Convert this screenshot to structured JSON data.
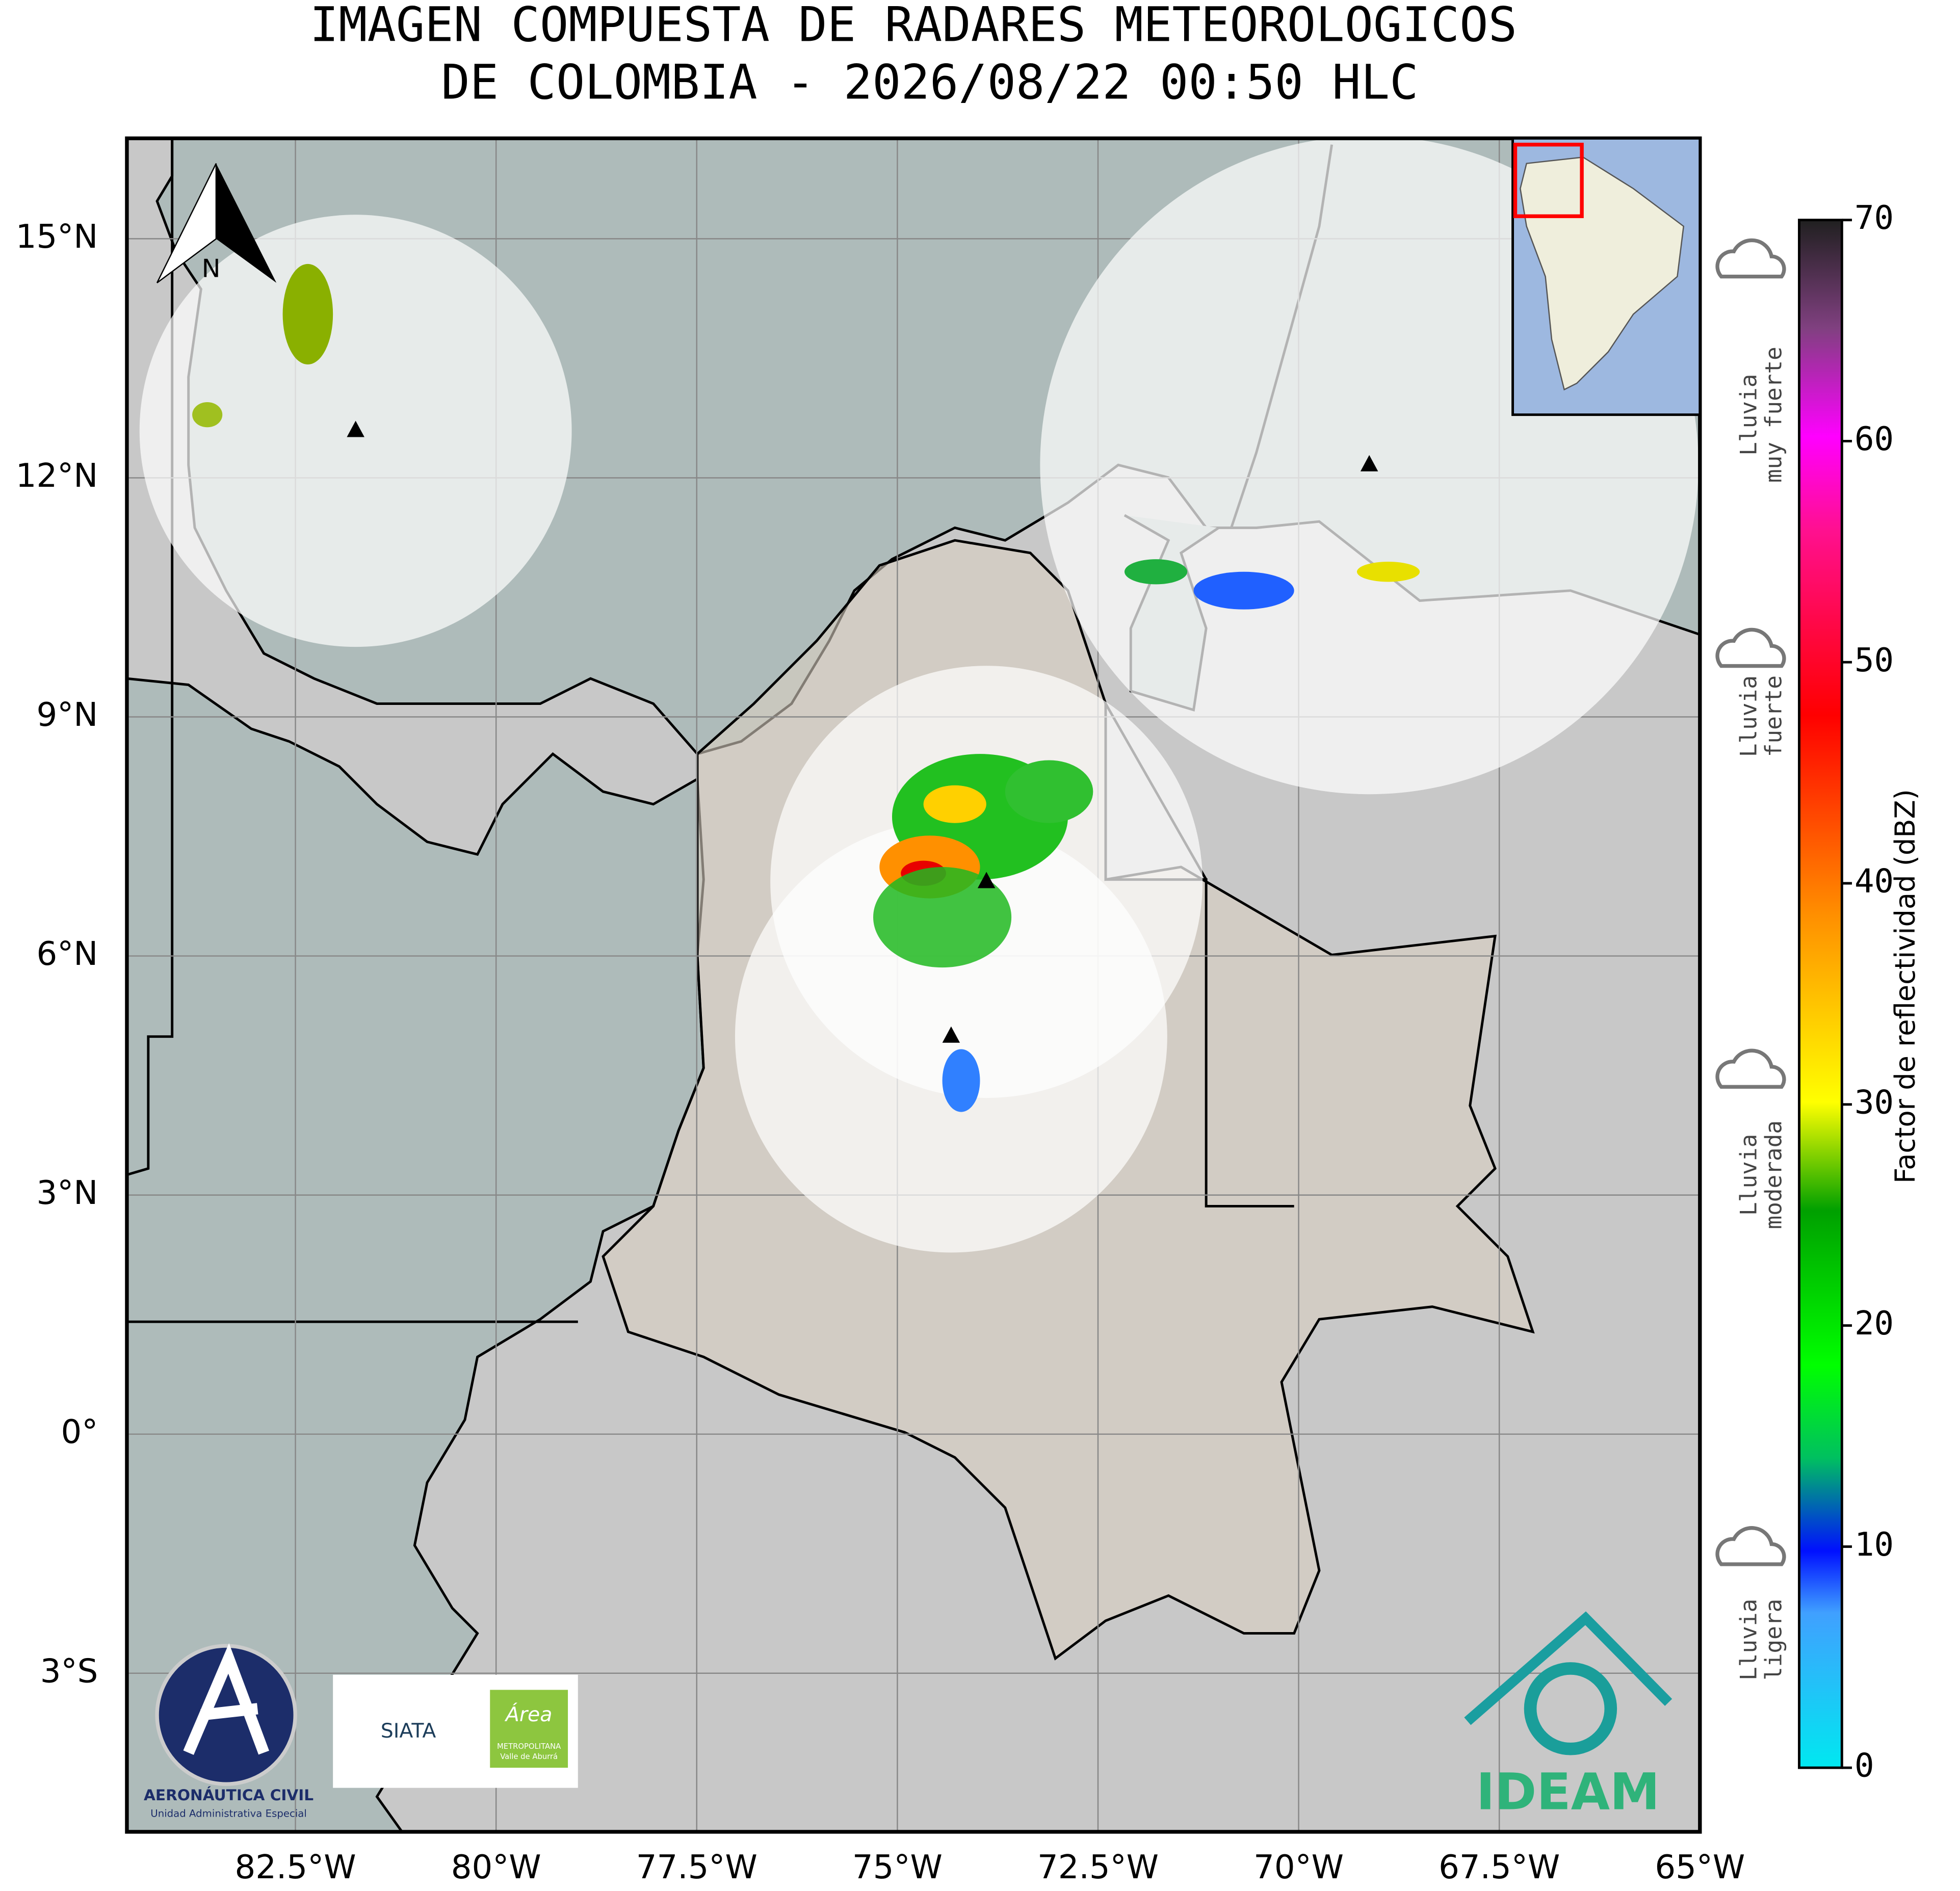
{
  "header": {
    "title_lines": [
      "IMAGEN COMPUESTA DE RADARES METEOROLOGICOS",
      "DE COLOMBIA - 2026/08/22 00:50 HLC"
    ]
  },
  "map": {
    "xlim": [
      -84.6,
      -65
    ],
    "ylim": [
      -4.99,
      16.26
    ],
    "xticks": [
      {
        "value": -82.5,
        "label": "82.5°W"
      },
      {
        "value": -80,
        "label": "80°W"
      },
      {
        "value": -77.5,
        "label": "77.5°W"
      },
      {
        "value": -75,
        "label": "75°W"
      },
      {
        "value": -72.5,
        "label": "72.5°W"
      },
      {
        "value": -70,
        "label": "70°W"
      },
      {
        "value": -67.5,
        "label": "67.5°W"
      },
      {
        "value": -65,
        "label": "65°W"
      }
    ],
    "yticks": [
      {
        "value": 15,
        "label": "15°N"
      },
      {
        "value": 12,
        "label": "12°N"
      },
      {
        "value": 9,
        "label": "9°N"
      },
      {
        "value": 6,
        "label": "6°N"
      },
      {
        "value": 3,
        "label": "3°N"
      },
      {
        "value": 0,
        "label": "0°"
      },
      {
        "value": -3,
        "label": "3°S"
      }
    ],
    "north_label": "N",
    "radars": [
      {
        "lon": -81.75,
        "lat": 12.59
      },
      {
        "lon": -69.12,
        "lat": 12.16
      },
      {
        "lon": -73.89,
        "lat": 6.93
      },
      {
        "lon": -74.33,
        "lat": 4.99
      }
    ]
  },
  "colorbar": {
    "label": "Factor de reflectividad (dBZ)",
    "lim": [
      0,
      70
    ],
    "ticks": [
      0,
      10,
      20,
      30,
      40,
      50,
      60,
      70
    ]
  },
  "rain_legend": [
    [
      "Lluvia",
      "muy fuerte"
    ],
    [
      "Lluvia",
      "fuerte"
    ],
    [
      "Lluvia",
      "moderada"
    ],
    [
      "Lluvia",
      "ligera"
    ]
  ],
  "logos": {
    "aerocivil": "AERONÁUTICA CIVIL",
    "aerocivil_sub": "Unidad Administrativa Especial",
    "siata": "SIATA",
    "area": "Área",
    "area_sub1": "METROPOLITANA",
    "area_sub2": "Valle de Aburrá",
    "ideam": "IDEAM"
  }
}
